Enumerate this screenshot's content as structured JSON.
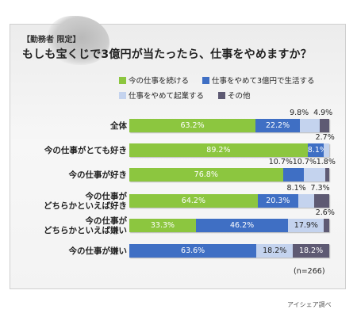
{
  "header": {
    "tag": "【勤務者 限定】",
    "title": "もしも宝くじで3億円が当たったら、仕事をやめますか？"
  },
  "footer": {
    "sample_size": "(n=266)",
    "source": "アイシェア調べ"
  },
  "chart_data": {
    "type": "bar",
    "orientation": "horizontal",
    "stacked": "100%",
    "title": "もしも宝くじで3億円が当たったら、仕事をやめますか？",
    "legend_placement": "top",
    "categories": [
      "全体",
      "今の仕事がとても好き",
      "今の仕事が好き",
      "今の仕事がどちらかといえば好き",
      "今の仕事がどちらかといえば嫌い",
      "今の仕事が嫌い"
    ],
    "category_lines": [
      [
        "全体"
      ],
      [
        "今の仕事がとても好き"
      ],
      [
        "今の仕事が好き"
      ],
      [
        "今の仕事が",
        "どちらかといえば好き"
      ],
      [
        "今の仕事が",
        "どちらかといえば嫌い"
      ],
      [
        "今の仕事が嫌い"
      ]
    ],
    "series": [
      {
        "name": "今の仕事を続ける",
        "color": "#8cc63f",
        "values": [
          63.2,
          89.2,
          76.8,
          64.2,
          33.3,
          0
        ]
      },
      {
        "name": "仕事をやめて3億円で生活する",
        "color": "#3f6fc4",
        "values": [
          22.2,
          8.1,
          10.7,
          20.3,
          46.2,
          63.6
        ]
      },
      {
        "name": "仕事をやめて起業する",
        "color": "#c4d3ee",
        "values": [
          9.8,
          2.7,
          10.7,
          8.1,
          17.9,
          18.2
        ]
      },
      {
        "name": "その他",
        "color": "#5e5a73",
        "values": [
          4.9,
          0,
          1.8,
          7.3,
          2.6,
          18.2
        ]
      }
    ],
    "data_labels": [
      [
        "63.2%",
        "22.2%",
        "9.8%",
        "4.9%"
      ],
      [
        "89.2%",
        "8.1%",
        "2.7%",
        ""
      ],
      [
        "76.8%",
        "10.7%",
        "10.7%",
        "1.8%"
      ],
      [
        "64.2%",
        "20.3%",
        "8.1%",
        "7.3%"
      ],
      [
        "33.3%",
        "46.2%",
        "17.9%",
        "2.6%"
      ],
      [
        "",
        "63.6%",
        "18.2%",
        "18.2%"
      ]
    ],
    "label_above": [
      [
        false,
        false,
        true,
        true
      ],
      [
        false,
        false,
        true,
        false
      ],
      [
        false,
        true,
        true,
        true
      ],
      [
        false,
        false,
        true,
        true
      ],
      [
        false,
        false,
        false,
        true
      ],
      [
        false,
        false,
        false,
        false
      ]
    ],
    "xlim": [
      0,
      100
    ]
  }
}
